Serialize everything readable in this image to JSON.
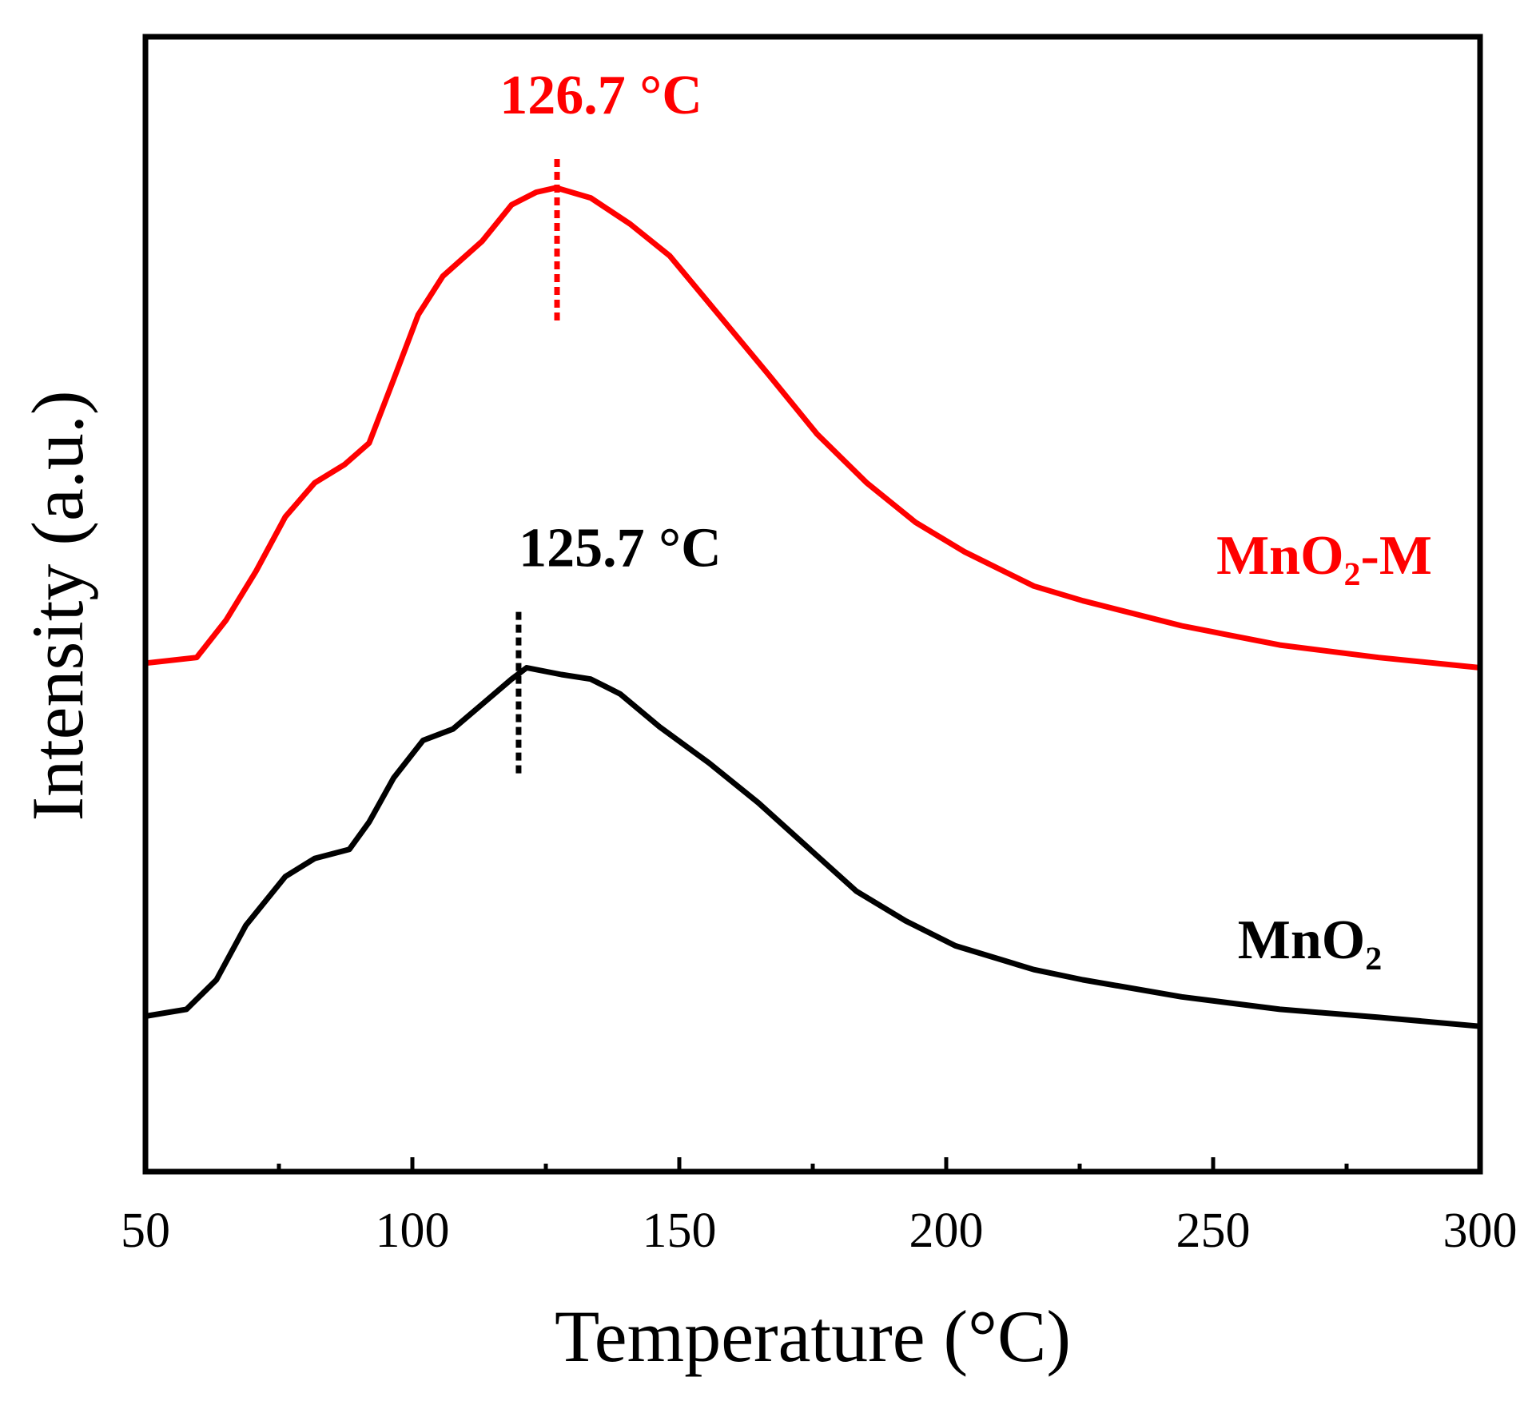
{
  "chart_data": {
    "type": "line",
    "xlabel": "Temperature (°C)",
    "ylabel": "Intensity (a.u.)",
    "xlim": [
      50,
      300
    ],
    "xticks": [
      50,
      100,
      150,
      200,
      250,
      300
    ],
    "xminorticks": [
      75,
      125,
      175,
      225,
      275
    ],
    "ylim": [
      0,
      100
    ],
    "series": [
      {
        "name": "MnO₂-M",
        "color": "#ff0000",
        "x": [
          50,
          59.6,
          65.1,
          70.7,
          76.2,
          81.7,
          87.3,
          91.9,
          96.5,
          101.1,
          105.7,
          113.1,
          118.6,
          123.2,
          126.9,
          133.4,
          140.8,
          148.2,
          157.4,
          166.6,
          175.8,
          185.1,
          194.3,
          203.5,
          216.4,
          225.6,
          244.1,
          262.5,
          281.0,
          300
        ],
        "values": [
          44.8,
          45.3,
          48.6,
          52.9,
          57.7,
          60.7,
          62.3,
          64.2,
          69.8,
          75.5,
          78.9,
          82.0,
          85.2,
          86.3,
          86.7,
          85.8,
          83.5,
          80.7,
          75.5,
          70.3,
          65.0,
          60.7,
          57.2,
          54.6,
          51.6,
          50.3,
          48.1,
          46.4,
          45.3,
          44.4
        ]
      },
      {
        "name": "MnO₂",
        "color": "#000000",
        "x": [
          50,
          57.7,
          63.3,
          68.8,
          76.2,
          81.7,
          88.2,
          91.9,
          96.5,
          102.0,
          107.6,
          113.1,
          118.6,
          121.4,
          127.9,
          133.4,
          138.9,
          146.3,
          155.6,
          164.8,
          174.0,
          183.2,
          192.4,
          201.7,
          216.4,
          225.6,
          244.1,
          262.5,
          281.0,
          300
        ],
        "values": [
          13.7,
          14.3,
          16.9,
          21.7,
          26.0,
          27.6,
          28.4,
          30.8,
          34.7,
          38.0,
          39.0,
          41.2,
          43.4,
          44.4,
          43.8,
          43.4,
          42.1,
          39.2,
          36.0,
          32.5,
          28.6,
          24.7,
          22.1,
          19.9,
          17.8,
          16.9,
          15.4,
          14.3,
          13.6,
          12.8
        ]
      }
    ],
    "annotations": [
      {
        "text": "126.7 °C",
        "color": "#ff0000",
        "x": 127.1,
        "y_low": 75.0,
        "y_high": 89.3
      },
      {
        "text": "125.7 °C",
        "color": "#000000",
        "x": 119.9,
        "y_low": 35.1,
        "y_high": 49.4
      }
    ]
  }
}
